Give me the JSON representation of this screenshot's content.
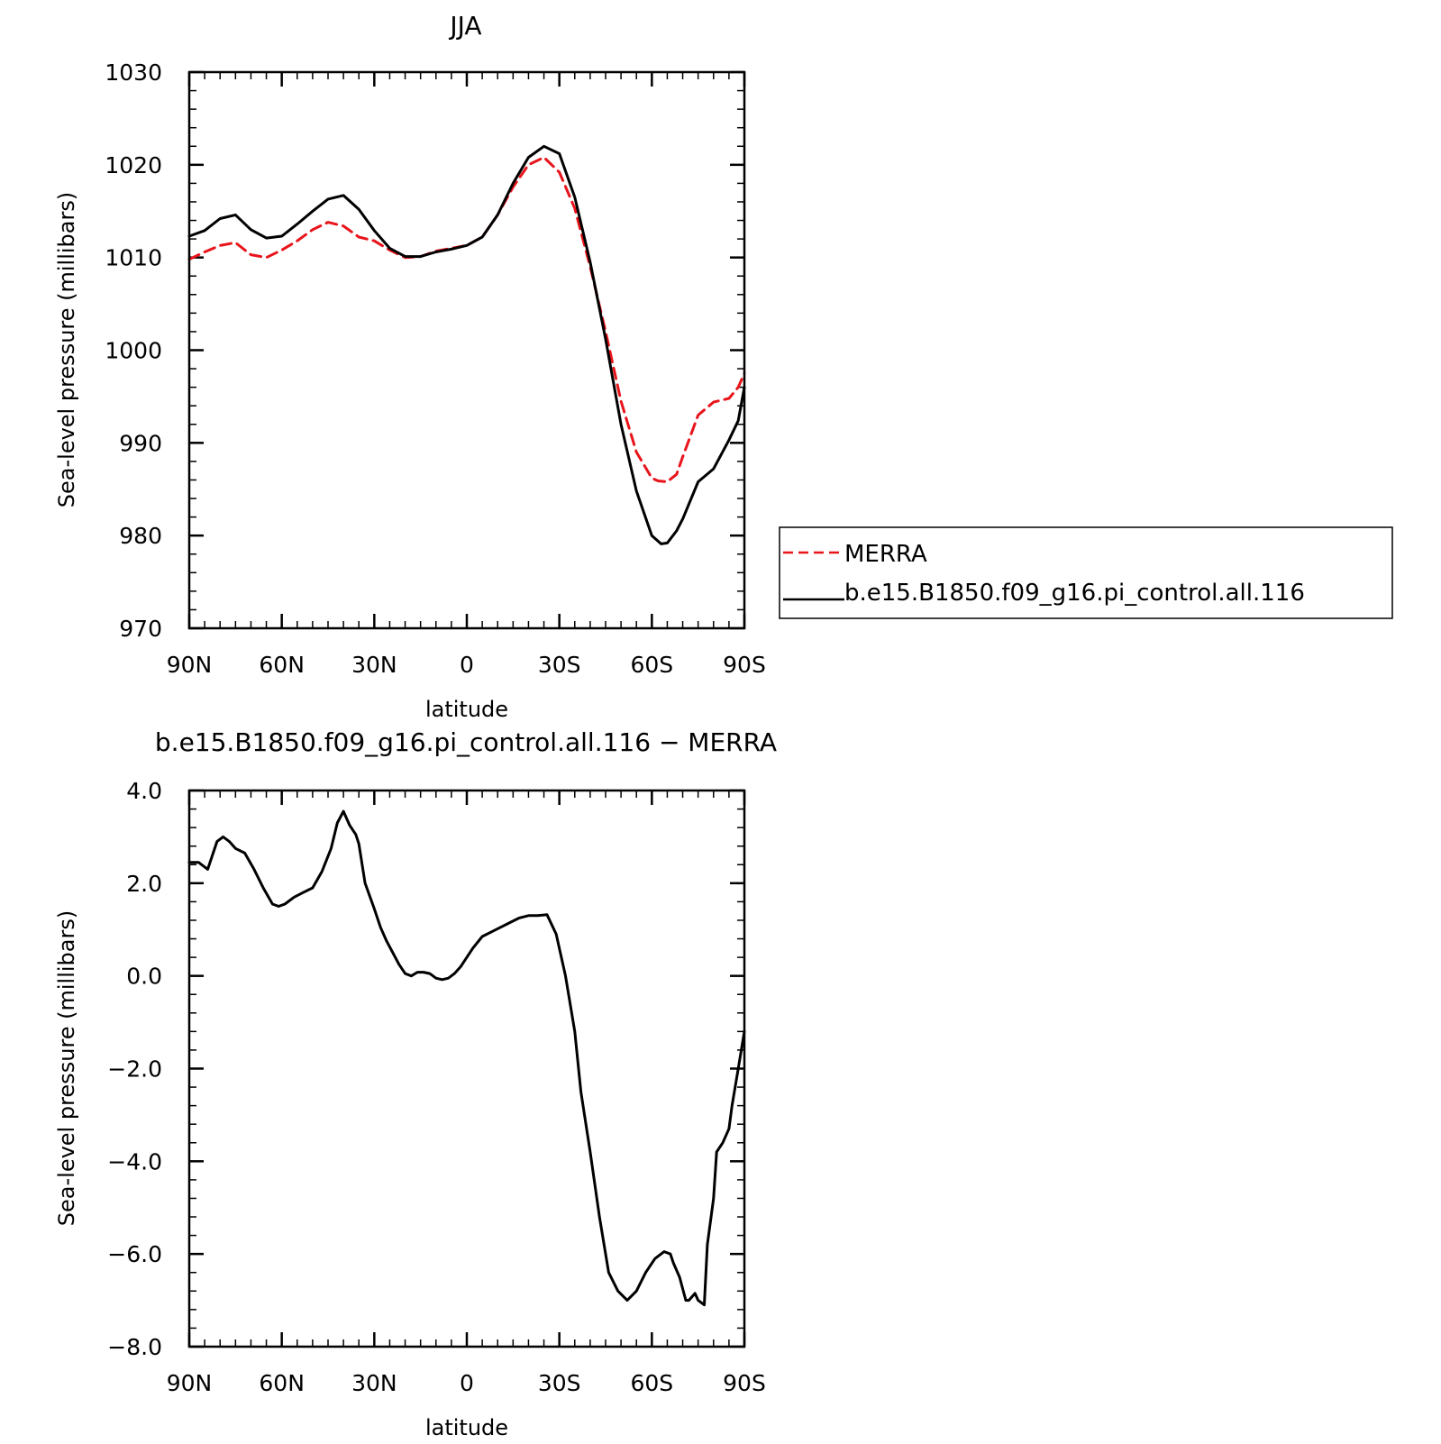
{
  "chart_data": [
    {
      "type": "line",
      "title": "JJA",
      "xlabel": "latitude",
      "ylabel": "Sea-level pressure (millibars)",
      "xlim": [
        90,
        -90
      ],
      "ylim": [
        970,
        1030
      ],
      "x_ticks": [
        90,
        60,
        30,
        0,
        -30,
        -60,
        -90
      ],
      "x_tick_labels": [
        "90N",
        "60N",
        "30N",
        "0",
        "30S",
        "60S",
        "90S"
      ],
      "y_ticks": [
        970,
        980,
        990,
        1000,
        1010,
        1020,
        1030
      ],
      "y_tick_labels": [
        "970",
        "980",
        "990",
        "1000",
        "1010",
        "1020",
        "1030"
      ],
      "legend_position": "right",
      "series": [
        {
          "name": "MERRA",
          "color": "#e8141b",
          "dash": "dashed",
          "x": [
            90,
            85,
            80,
            75,
            70,
            65,
            60,
            55,
            50,
            45,
            40,
            35,
            30,
            25,
            20,
            15,
            10,
            5,
            0,
            -5,
            -10,
            -15,
            -20,
            -25,
            -30,
            -35,
            -40,
            -45,
            -50,
            -55,
            -60,
            -62,
            -65,
            -68,
            -70,
            -75,
            -80,
            -85,
            -88,
            -90
          ],
          "y": [
            1009.8,
            1010.6,
            1011.3,
            1011.6,
            1010.3,
            1010.0,
            1010.8,
            1011.8,
            1013.0,
            1013.8,
            1013.4,
            1012.2,
            1011.8,
            1010.8,
            1010.0,
            1010.1,
            1010.7,
            1011.0,
            1011.3,
            1012.2,
            1014.6,
            1017.6,
            1020.0,
            1020.8,
            1019.2,
            1015.3,
            1009.0,
            1002.0,
            994.5,
            989.0,
            986.2,
            985.9,
            985.8,
            986.6,
            988.5,
            993.0,
            994.4,
            994.8,
            996.0,
            997.5
          ]
        },
        {
          "name": "b.e15.B1850.f09_g16.pi_control.all.116",
          "color": "#000000",
          "dash": "solid",
          "x": [
            90,
            85,
            80,
            75,
            70,
            65,
            60,
            55,
            50,
            45,
            40,
            35,
            30,
            25,
            20,
            15,
            10,
            5,
            0,
            -5,
            -10,
            -15,
            -20,
            -25,
            -30,
            -35,
            -40,
            -45,
            -50,
            -55,
            -60,
            -63,
            -65,
            -68,
            -70,
            -75,
            -80,
            -85,
            -88,
            -90
          ],
          "y": [
            1012.3,
            1012.9,
            1014.2,
            1014.6,
            1013.0,
            1012.1,
            1012.3,
            1013.6,
            1015.0,
            1016.3,
            1016.7,
            1015.2,
            1012.9,
            1011.0,
            1010.1,
            1010.1,
            1010.6,
            1010.9,
            1011.3,
            1012.2,
            1014.6,
            1018.0,
            1020.8,
            1022.0,
            1021.2,
            1016.5,
            1009.5,
            1001.2,
            992.0,
            984.8,
            980.0,
            979.1,
            979.2,
            980.5,
            981.8,
            985.8,
            987.2,
            990.3,
            992.4,
            996.0
          ]
        }
      ]
    },
    {
      "type": "line",
      "title": "b.e15.B1850.f09_g16.pi_control.all.116 − MERRA",
      "xlabel": "latitude",
      "ylabel": "Sea-level pressure (millibars)",
      "xlim": [
        90,
        -90
      ],
      "ylim": [
        -8,
        4
      ],
      "x_ticks": [
        90,
        60,
        30,
        0,
        -30,
        -60,
        -90
      ],
      "x_tick_labels": [
        "90N",
        "60N",
        "30N",
        "0",
        "30S",
        "60S",
        "90S"
      ],
      "y_ticks": [
        -8,
        -6,
        -4,
        -2,
        0,
        2,
        4
      ],
      "y_tick_labels": [
        "−8.0",
        "−6.0",
        "−4.0",
        "−2.0",
        "0.0",
        "2.0",
        "4.0"
      ],
      "series": [
        {
          "color": "#000000",
          "dash": "solid",
          "x": [
            90,
            87,
            84,
            81,
            79,
            77,
            75,
            72,
            69,
            66,
            63,
            61,
            59,
            56,
            53,
            50,
            47,
            44,
            42,
            40,
            38,
            36,
            35,
            33,
            30,
            28,
            26,
            24,
            22,
            20,
            18,
            16,
            14,
            12,
            10,
            8,
            6,
            4,
            2,
            0,
            -2,
            -5,
            -8,
            -11,
            -14,
            -17,
            -20,
            -23,
            -26,
            -29,
            -32,
            -35,
            -37,
            -40,
            -43,
            -46,
            -49,
            -52,
            -55,
            -58,
            -61,
            -64,
            -66,
            -67,
            -69,
            -71,
            -72,
            -74,
            -75,
            -77,
            -78,
            -80,
            -81,
            -83,
            -85,
            -86,
            -88,
            -90
          ],
          "y": [
            2.45,
            2.45,
            2.3,
            2.9,
            3.0,
            2.9,
            2.75,
            2.65,
            2.3,
            1.9,
            1.55,
            1.5,
            1.55,
            1.7,
            1.8,
            1.9,
            2.25,
            2.75,
            3.3,
            3.55,
            3.25,
            3.05,
            2.85,
            2.0,
            1.45,
            1.05,
            0.75,
            0.5,
            0.25,
            0.05,
            0.0,
            0.08,
            0.08,
            0.05,
            -0.05,
            -0.08,
            -0.05,
            0.05,
            0.2,
            0.4,
            0.6,
            0.85,
            0.95,
            1.05,
            1.15,
            1.25,
            1.3,
            1.3,
            1.32,
            0.9,
            0.0,
            -1.2,
            -2.5,
            -3.8,
            -5.2,
            -6.4,
            -6.8,
            -7.0,
            -6.8,
            -6.4,
            -6.1,
            -5.95,
            -6.0,
            -6.2,
            -6.5,
            -7.0,
            -7.0,
            -6.85,
            -7.0,
            -7.1,
            -5.8,
            -4.8,
            -3.8,
            -3.6,
            -3.3,
            -2.8,
            -2.0,
            -1.2
          ]
        }
      ]
    }
  ]
}
